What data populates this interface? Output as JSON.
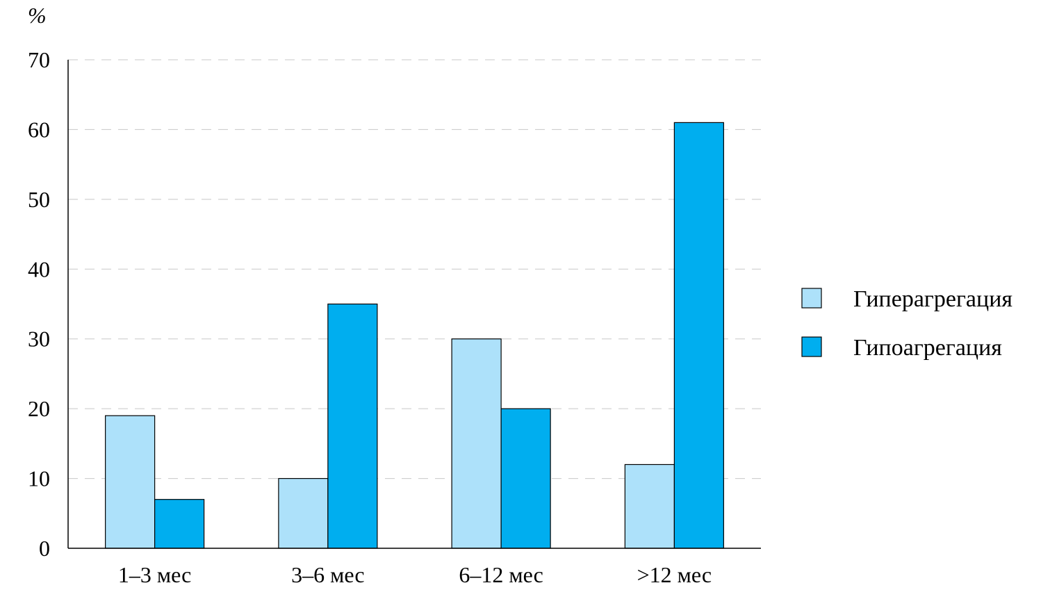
{
  "chart_data": {
    "type": "bar",
    "title": "",
    "xlabel": "",
    "ylabel": "%",
    "ylim": [
      0,
      70
    ],
    "yticks": [
      0,
      10,
      20,
      30,
      40,
      50,
      60,
      70
    ],
    "grid": true,
    "legend_position": "right",
    "categories": [
      "1–3 мес",
      "3–6 мес",
      "6–12 мес",
      ">12 мес"
    ],
    "series": [
      {
        "name": "Гиперагрегация",
        "color": "#ade1fa",
        "values": [
          19,
          10,
          30,
          12
        ]
      },
      {
        "name": "Гипоагрегация",
        "color": "#00aeef",
        "values": [
          7,
          35,
          20,
          61
        ]
      }
    ]
  }
}
